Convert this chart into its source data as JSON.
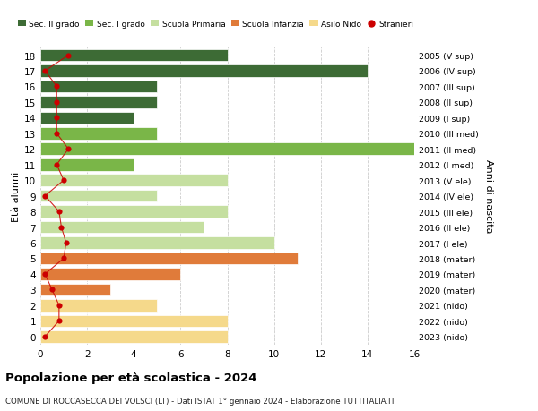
{
  "ages": [
    18,
    17,
    16,
    15,
    14,
    13,
    12,
    11,
    10,
    9,
    8,
    7,
    6,
    5,
    4,
    3,
    2,
    1,
    0
  ],
  "right_labels": [
    "2005 (V sup)",
    "2006 (IV sup)",
    "2007 (III sup)",
    "2008 (II sup)",
    "2009 (I sup)",
    "2010 (III med)",
    "2011 (II med)",
    "2012 (I med)",
    "2013 (V ele)",
    "2014 (IV ele)",
    "2015 (III ele)",
    "2016 (II ele)",
    "2017 (I ele)",
    "2018 (mater)",
    "2019 (mater)",
    "2020 (mater)",
    "2021 (nido)",
    "2022 (nido)",
    "2023 (nido)"
  ],
  "bar_values": [
    8,
    14,
    5,
    5,
    4,
    5,
    16,
    4,
    8,
    5,
    8,
    7,
    10,
    11,
    6,
    3,
    5,
    8,
    8
  ],
  "bar_colors": [
    "#3d6b35",
    "#3d6b35",
    "#3d6b35",
    "#3d6b35",
    "#3d6b35",
    "#7ab648",
    "#7ab648",
    "#7ab648",
    "#c5dfa0",
    "#c5dfa0",
    "#c5dfa0",
    "#c5dfa0",
    "#c5dfa0",
    "#e07b3a",
    "#e07b3a",
    "#e07b3a",
    "#f5d98b",
    "#f5d98b",
    "#f5d98b"
  ],
  "stranieri_x": [
    1,
    0,
    1,
    1,
    1,
    1,
    1,
    1,
    1,
    0,
    1,
    1,
    1,
    1,
    0,
    1,
    1,
    1,
    0
  ],
  "legend_labels": [
    "Sec. II grado",
    "Sec. I grado",
    "Scuola Primaria",
    "Scuola Infanzia",
    "Asilo Nido",
    "Stranieri"
  ],
  "legend_colors": [
    "#3d6b35",
    "#7ab648",
    "#c5dfa0",
    "#e07b3a",
    "#f5d98b",
    "#cc0000"
  ],
  "title": "Popolazione per età scolastica - 2024",
  "subtitle": "COMUNE DI ROCCASECCA DEI VOLSCI (LT) - Dati ISTAT 1° gennaio 2024 - Elaborazione TUTTITALIA.IT",
  "ylabel_left": "Età alunni",
  "ylabel_right": "Anni di nascita",
  "xlim": [
    0,
    16
  ],
  "bg_color": "#ffffff",
  "grid_color": "#cccccc",
  "bar_height": 0.78,
  "stranieri_dot_x": [
    1.2,
    0.2,
    0.7,
    0.7,
    0.7,
    0.7,
    1.2,
    0.7,
    1.0,
    0.2,
    0.8,
    0.9,
    1.1,
    1.0,
    0.2,
    0.5,
    0.8,
    0.8,
    0.2
  ]
}
